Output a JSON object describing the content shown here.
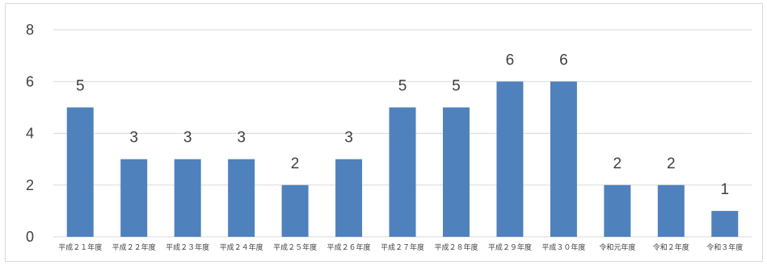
{
  "chart_data": {
    "type": "bar",
    "categories": [
      "平成２１年度",
      "平成２２年度",
      "平成２３年度",
      "平成２４年度",
      "平成２５年度",
      "平成２６年度",
      "平成２７年度",
      "平成２８年度",
      "平成２９年度",
      "平成３０年度",
      "令和元年度",
      "令和２年度",
      "令和３年度"
    ],
    "values": [
      5,
      3,
      3,
      3,
      2,
      3,
      5,
      5,
      6,
      6,
      2,
      2,
      1
    ],
    "ylim": [
      0,
      8
    ],
    "yticks": [
      0,
      2,
      4,
      6,
      8
    ],
    "grid": true,
    "data_labels": true,
    "bar_color": "#4f81bd",
    "grid_color": "#d9d9d9",
    "text_color": "#404040"
  }
}
